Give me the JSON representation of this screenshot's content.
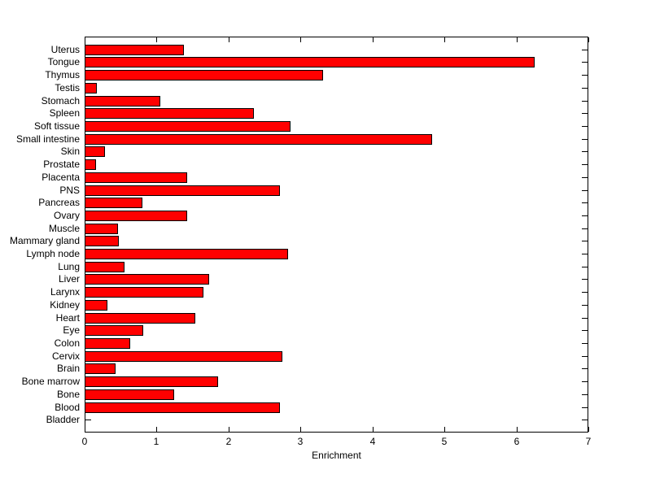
{
  "figure": {
    "background_color": "#ffffff",
    "title": ""
  },
  "chart_data": {
    "type": "bar",
    "orientation": "horizontal",
    "title": "",
    "xlabel": "Enrichment",
    "ylabel": "",
    "categories_order": "top-to-bottom",
    "categories": [
      "Uterus",
      "Tongue",
      "Thymus",
      "Testis",
      "Stomach",
      "Spleen",
      "Soft tissue",
      "Small intestine",
      "Skin",
      "Prostate",
      "Placenta",
      "PNS",
      "Pancreas",
      "Ovary",
      "Muscle",
      "Mammary gland",
      "Lymph node",
      "Lung",
      "Liver",
      "Larynx",
      "Kidney",
      "Heart",
      "Eye",
      "Colon",
      "Cervix",
      "Brain",
      "Bone marrow",
      "Bone",
      "Blood",
      "Bladder"
    ],
    "values": [
      1.38,
      6.25,
      3.31,
      0.17,
      1.05,
      2.35,
      2.86,
      4.83,
      0.28,
      0.16,
      1.43,
      2.71,
      0.8,
      1.42,
      0.46,
      0.48,
      2.83,
      0.55,
      1.73,
      1.65,
      0.32,
      1.54,
      0.81,
      0.63,
      2.75,
      0.43,
      1.86,
      1.24,
      2.71,
      0.0
    ],
    "xlim": [
      0,
      7
    ],
    "xticks": [
      0,
      1,
      2,
      3,
      4,
      5,
      6,
      7
    ],
    "grid": false,
    "legend": null,
    "bar_color": "#ff0000",
    "bar_edge_color": "#000000",
    "axis_color": "#000000",
    "tick_style": "inward"
  }
}
